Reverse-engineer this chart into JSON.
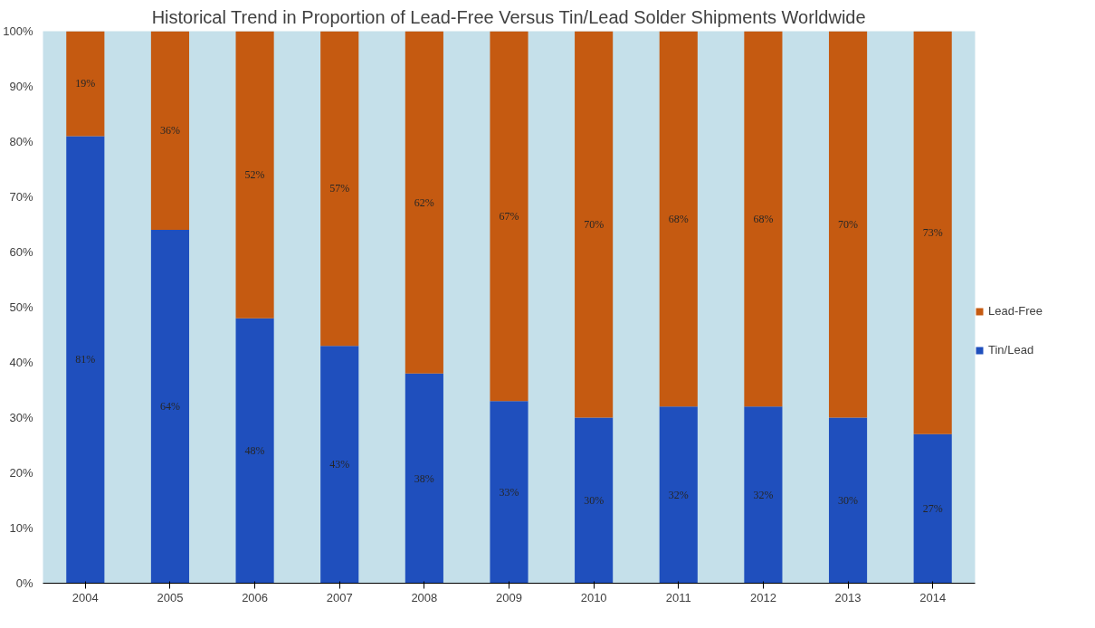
{
  "chart_data": {
    "type": "bar",
    "stacked": true,
    "title": "Historical Trend in Proportion of Lead-Free Versus Tin/Lead Solder Shipments Worldwide",
    "categories": [
      "2004",
      "2005",
      "2006",
      "2007",
      "2008",
      "2009",
      "2010",
      "2011",
      "2012",
      "2013",
      "2014"
    ],
    "series": [
      {
        "name": "Tin/Lead",
        "color": "#1f4fbd",
        "values": [
          81,
          64,
          48,
          43,
          38,
          33,
          30,
          32,
          32,
          30,
          27
        ],
        "value_labels": [
          "81%",
          "64%",
          "48%",
          "43%",
          "38%",
          "33%",
          "30%",
          "32%",
          "32%",
          "30%",
          "27%"
        ]
      },
      {
        "name": "Lead-Free",
        "color": "#c55a11",
        "values": [
          19,
          36,
          52,
          57,
          62,
          67,
          70,
          68,
          68,
          70,
          73
        ],
        "value_labels": [
          "19%",
          "36%",
          "52%",
          "57%",
          "62%",
          "67%",
          "70%",
          "68%",
          "68%",
          "70%",
          "73%"
        ]
      }
    ],
    "ylim": [
      0,
      100
    ],
    "yticks": [
      {
        "value": 0,
        "label": "0%"
      },
      {
        "value": 10,
        "label": "10%"
      },
      {
        "value": 20,
        "label": "20%"
      },
      {
        "value": 30,
        "label": "30%"
      },
      {
        "value": 40,
        "label": "40%"
      },
      {
        "value": 50,
        "label": "50%"
      },
      {
        "value": 60,
        "label": "60%"
      },
      {
        "value": 70,
        "label": "70%"
      },
      {
        "value": 80,
        "label": "80%"
      },
      {
        "value": 90,
        "label": "90%"
      },
      {
        "value": 100,
        "label": "100%"
      }
    ],
    "grid": false,
    "legend": "right"
  }
}
